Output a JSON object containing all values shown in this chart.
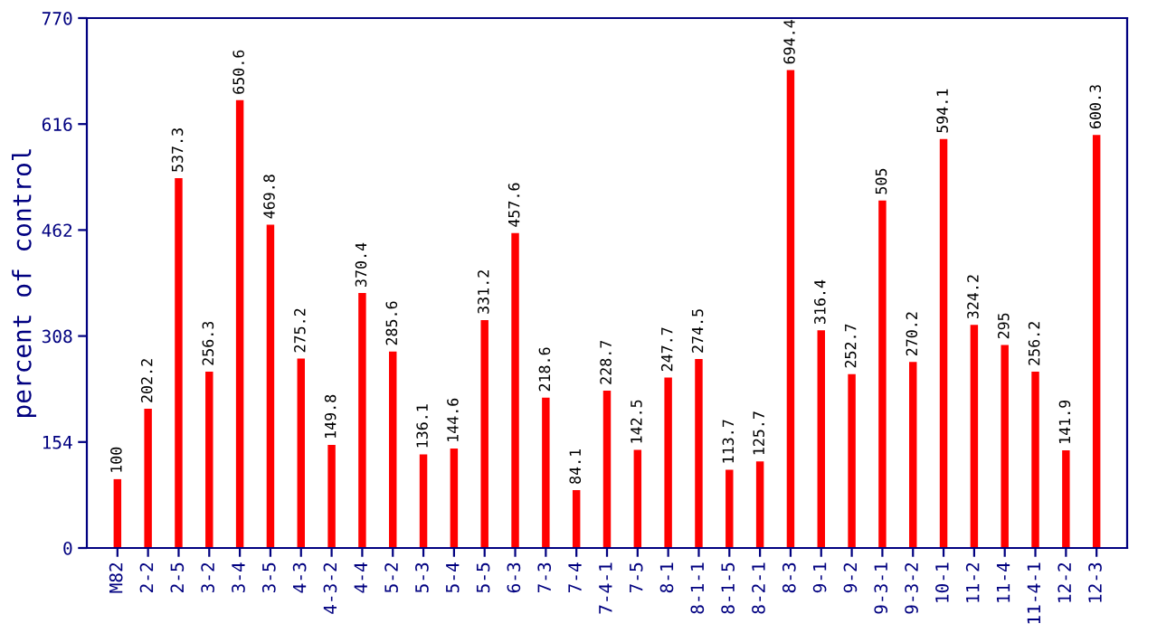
{
  "chart_data": {
    "type": "bar",
    "ylabel": "percent of control",
    "categories": [
      "M82",
      "2-2",
      "2-5",
      "3-2",
      "3-4",
      "3-5",
      "4-3",
      "4-3-2",
      "4-4",
      "5-2",
      "5-3",
      "5-4",
      "5-5",
      "6-3",
      "7-3",
      "7-4",
      "7-4-1",
      "7-5",
      "8-1",
      "8-1-1",
      "8-1-5",
      "8-2-1",
      "8-3",
      "9-1",
      "9-2",
      "9-3-1",
      "9-3-2",
      "10-1",
      "11-2",
      "11-4",
      "11-4-1",
      "12-2",
      "12-3"
    ],
    "values": [
      100,
      202.2,
      537.3,
      256.3,
      650.6,
      469.8,
      275.2,
      149.8,
      370.4,
      285.6,
      136.1,
      144.6,
      331.2,
      457.6,
      218.6,
      84.1,
      228.7,
      142.5,
      247.7,
      274.5,
      113.7,
      125.7,
      694.4,
      316.4,
      252.7,
      505,
      270.2,
      594.1,
      324.2,
      295,
      256.2,
      141.9,
      600.3
    ],
    "color": "#ff0000",
    "ylim": [
      0,
      770
    ],
    "yticks": [
      0,
      154,
      308,
      462,
      616,
      770
    ],
    "grid": false,
    "data_labels": true,
    "legend": false
  }
}
